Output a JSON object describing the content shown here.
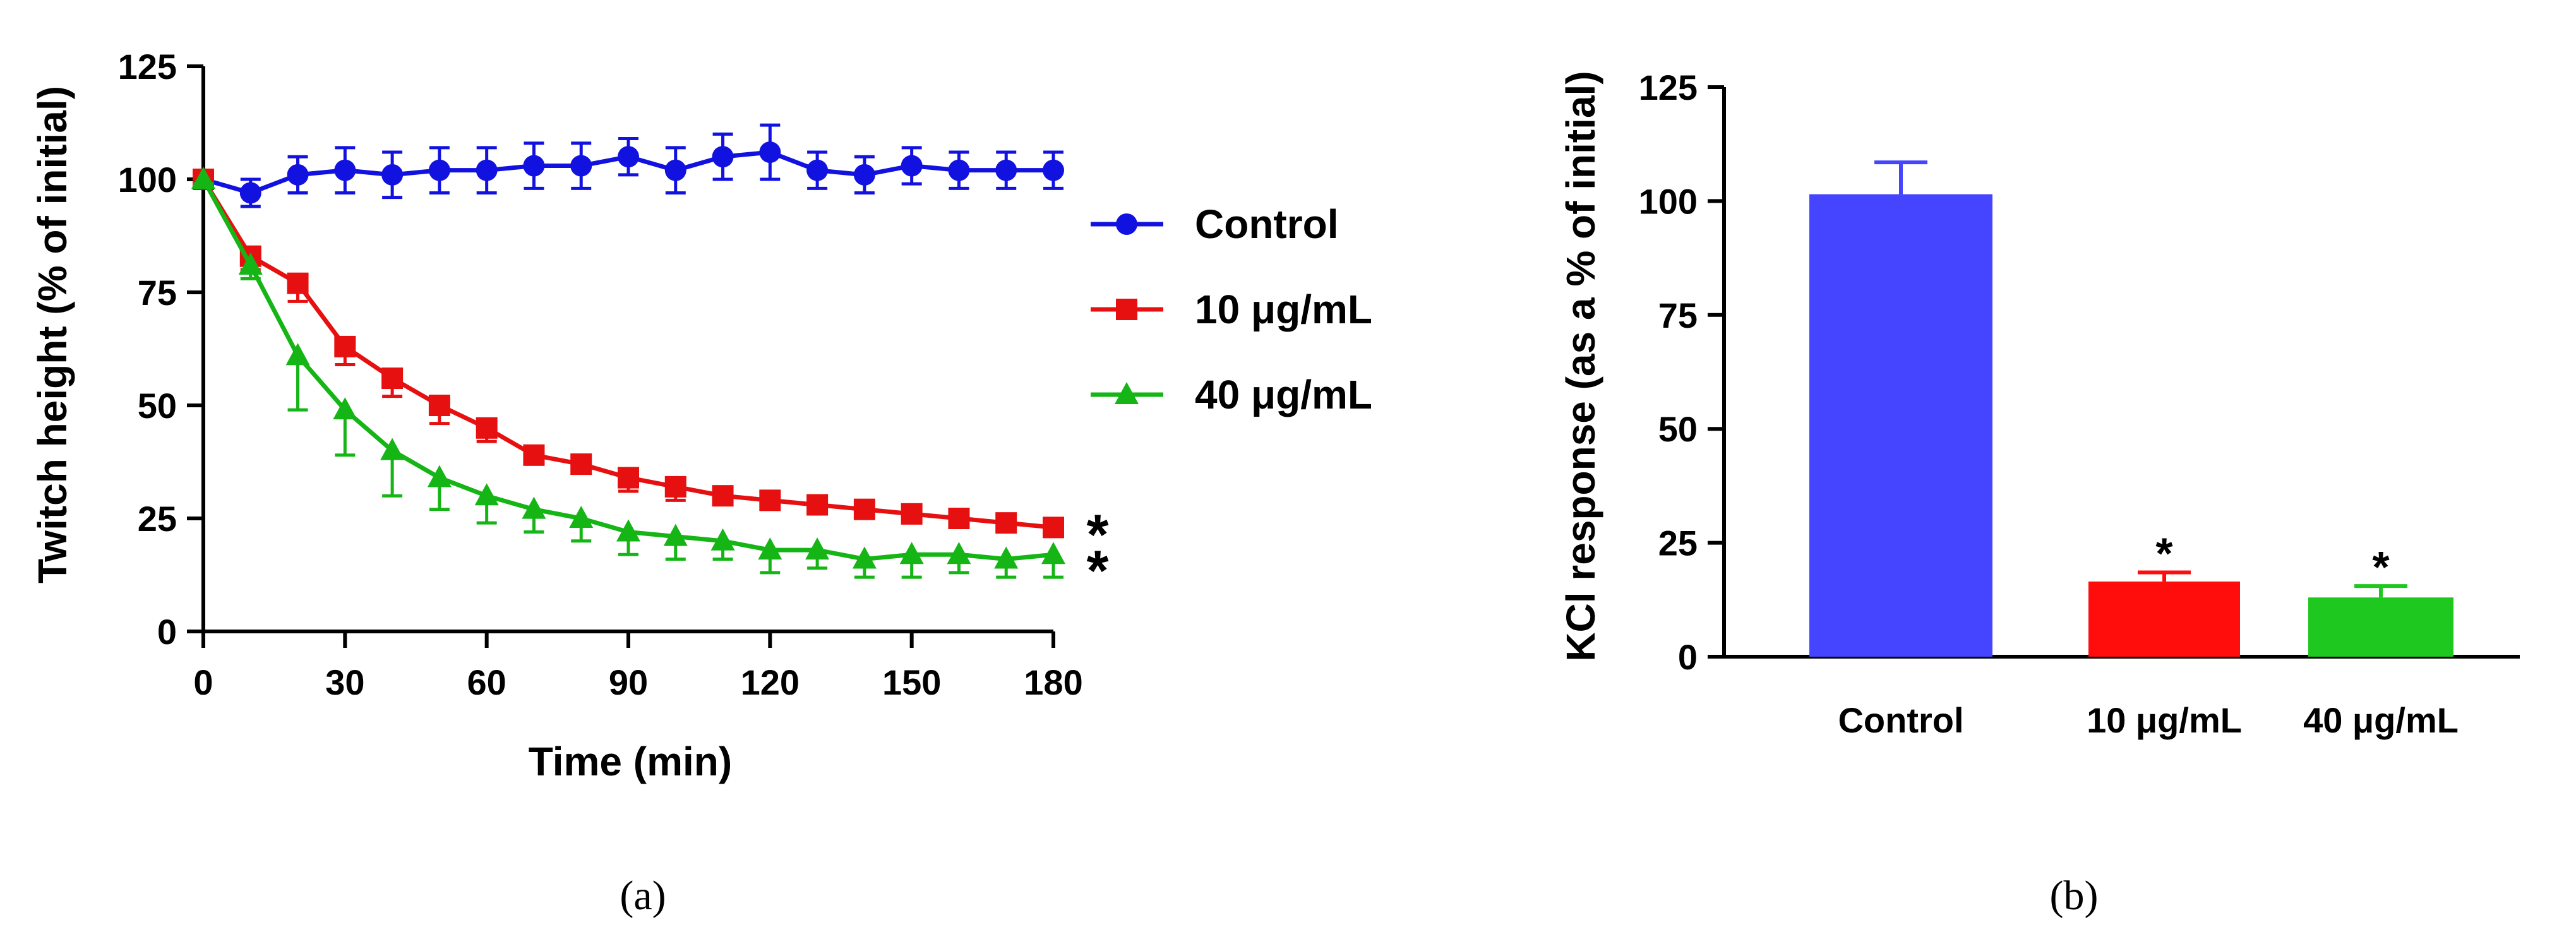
{
  "figure": {
    "panel_a_label": "(a)",
    "panel_b_label": "(b)"
  },
  "colors": {
    "control": "#1212e0",
    "low": "#e61010",
    "high": "#15b515",
    "bar_control": "#4545ff",
    "bar_low": "#ff0c0c",
    "bar_high": "#1ec81e"
  },
  "chart_data": [
    {
      "type": "line",
      "xlabel": "Time (min)",
      "ylabel": "Twitch height (% of initial)",
      "xlim": [
        0,
        180
      ],
      "ylim": [
        0,
        125
      ],
      "xticks": [
        0,
        30,
        60,
        90,
        120,
        150,
        180
      ],
      "yticks": [
        0,
        25,
        50,
        75,
        100,
        125
      ],
      "x": [
        0,
        10,
        20,
        30,
        40,
        50,
        60,
        70,
        80,
        90,
        100,
        110,
        120,
        130,
        140,
        150,
        160,
        170,
        180
      ],
      "series": [
        {
          "name": "Control",
          "color": "#1212e0",
          "marker": "circle",
          "values": [
            100,
            97,
            101,
            102,
            101,
            102,
            102,
            103,
            103,
            105,
            102,
            105,
            106,
            102,
            101,
            103,
            102,
            102,
            102
          ],
          "errors": [
            1,
            3,
            4,
            5,
            5,
            5,
            5,
            5,
            5,
            4,
            5,
            5,
            6,
            4,
            4,
            4,
            4,
            4,
            4
          ]
        },
        {
          "name": "10 μg/mL",
          "color": "#e61010",
          "marker": "square",
          "values": [
            100,
            83,
            77,
            63,
            56,
            50,
            45,
            39,
            37,
            34,
            32,
            30,
            29,
            28,
            27,
            26,
            25,
            24,
            23
          ],
          "errors": [
            1,
            3,
            4,
            4,
            4,
            4,
            3,
            2,
            2,
            3,
            3,
            2,
            2,
            2,
            2,
            2,
            2,
            2,
            2
          ],
          "annotation": "*"
        },
        {
          "name": "40 μg/mL",
          "color": "#15b515",
          "marker": "triangle",
          "values": [
            100,
            81,
            61,
            49,
            40,
            34,
            30,
            27,
            25,
            22,
            21,
            20,
            18,
            18,
            16,
            17,
            17,
            16,
            17
          ],
          "errors": [
            1,
            3,
            12,
            10,
            10,
            7,
            6,
            5,
            5,
            5,
            5,
            4,
            5,
            4,
            4,
            5,
            4,
            4,
            5
          ],
          "annotation": "*"
        }
      ]
    },
    {
      "type": "bar",
      "ylabel": "KCl response (as a % of initial)",
      "ylim": [
        0,
        125
      ],
      "yticks": [
        0,
        25,
        50,
        75,
        100,
        125
      ],
      "categories": [
        "Control",
        "10 μg/mL",
        "40 μg/mL"
      ],
      "values": [
        101.5,
        16.5,
        13
      ],
      "errors": [
        7,
        2,
        2.5
      ],
      "annotations": [
        "",
        "*",
        "*"
      ]
    }
  ]
}
